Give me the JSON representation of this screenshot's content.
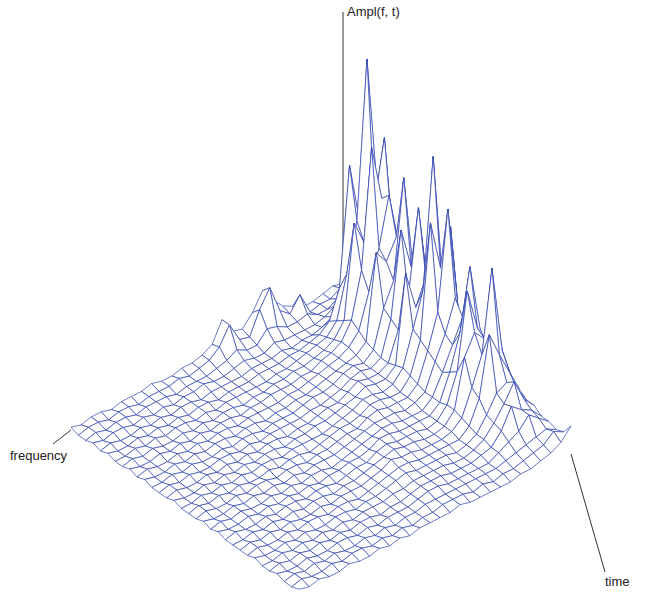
{
  "chart_data": {
    "type": "surface",
    "x_label": "time",
    "y_label": "frequency",
    "z_label": "Ampl(f, t)",
    "color": "#2f44b0",
    "tick_labels": false,
    "zlim": [
      0,
      100
    ],
    "values": [
      [
        3,
        4,
        3,
        2,
        2,
        4,
        6,
        10,
        15,
        9,
        5,
        6,
        12,
        5,
        3,
        2,
        2,
        1,
        1,
        2,
        1,
        1,
        1,
        0,
        1,
        1,
        0,
        1
      ],
      [
        4,
        5,
        3,
        3,
        2,
        10,
        5,
        8,
        18,
        12,
        4,
        5,
        12,
        6,
        3,
        2,
        1,
        2,
        1,
        1,
        1,
        0,
        1,
        1,
        0,
        1,
        1,
        0
      ],
      [
        6,
        8,
        5,
        3,
        3,
        5,
        4,
        4,
        6,
        7,
        3,
        3,
        5,
        3,
        2,
        1,
        1,
        1,
        0,
        1,
        1,
        1,
        0,
        1,
        1,
        0,
        1,
        0
      ],
      [
        10,
        12,
        9,
        6,
        4,
        3,
        3,
        3,
        3,
        4,
        2,
        2,
        3,
        2,
        1,
        1,
        2,
        1,
        1,
        0,
        1,
        0,
        1,
        0,
        1,
        1,
        0,
        1
      ],
      [
        14,
        20,
        15,
        10,
        6,
        4,
        3,
        3,
        2,
        3,
        2,
        2,
        2,
        1,
        1,
        1,
        1,
        0,
        1,
        1,
        0,
        1,
        0,
        1,
        0,
        0,
        1,
        0
      ],
      [
        20,
        35,
        38,
        60,
        18,
        8,
        5,
        4,
        3,
        3,
        2,
        2,
        2,
        1,
        1,
        1,
        0,
        1,
        1,
        0,
        1,
        0,
        1,
        0,
        1,
        0,
        0,
        1
      ],
      [
        30,
        50,
        98,
        42,
        25,
        10,
        6,
        5,
        4,
        3,
        2,
        2,
        1,
        1,
        1,
        1,
        1,
        0,
        1,
        0,
        1,
        1,
        0,
        1,
        0,
        1,
        0,
        0
      ],
      [
        25,
        70,
        48,
        36,
        45,
        12,
        7,
        5,
        4,
        3,
        3,
        2,
        2,
        1,
        1,
        0,
        1,
        1,
        0,
        1,
        0,
        1,
        0,
        0,
        1,
        0,
        1,
        0
      ],
      [
        22,
        40,
        52,
        72,
        30,
        14,
        8,
        6,
        5,
        3,
        3,
        2,
        2,
        2,
        1,
        1,
        0,
        1,
        1,
        0,
        1,
        0,
        1,
        0,
        1,
        0,
        0,
        1
      ],
      [
        18,
        35,
        55,
        38,
        24,
        12,
        8,
        6,
        5,
        4,
        3,
        2,
        2,
        1,
        1,
        1,
        1,
        0,
        1,
        1,
        0,
        1,
        0,
        1,
        0,
        0,
        1,
        0
      ],
      [
        15,
        30,
        42,
        35,
        40,
        10,
        7,
        6,
        5,
        4,
        3,
        2,
        2,
        1,
        1,
        0,
        1,
        1,
        0,
        1,
        1,
        0,
        1,
        0,
        1,
        0,
        0,
        1
      ],
      [
        14,
        28,
        65,
        30,
        22,
        9,
        6,
        7,
        6,
        4,
        3,
        3,
        2,
        1,
        1,
        1,
        0,
        1,
        1,
        0,
        1,
        0,
        0,
        1,
        0,
        1,
        0,
        0
      ],
      [
        12,
        45,
        35,
        50,
        20,
        8,
        6,
        7,
        6,
        4,
        3,
        2,
        2,
        1,
        1,
        1,
        1,
        0,
        1,
        0,
        1,
        1,
        0,
        0,
        1,
        0,
        1,
        0
      ],
      [
        10,
        25,
        58,
        28,
        18,
        8,
        6,
        6,
        7,
        5,
        3,
        3,
        2,
        1,
        1,
        0,
        1,
        1,
        0,
        1,
        0,
        1,
        0,
        1,
        0,
        0,
        1,
        0
      ],
      [
        12,
        22,
        35,
        26,
        40,
        9,
        6,
        6,
        7,
        5,
        4,
        3,
        2,
        2,
        1,
        1,
        0,
        1,
        1,
        0,
        1,
        0,
        1,
        0,
        1,
        0,
        0,
        1
      ],
      [
        15,
        30,
        80,
        34,
        22,
        10,
        6,
        5,
        6,
        6,
        4,
        3,
        2,
        1,
        1,
        1,
        1,
        0,
        1,
        1,
        0,
        1,
        0,
        1,
        0,
        1,
        0,
        0
      ],
      [
        14,
        55,
        42,
        60,
        20,
        9,
        5,
        5,
        6,
        6,
        4,
        3,
        3,
        2,
        1,
        0,
        1,
        1,
        0,
        1,
        0,
        0,
        1,
        0,
        1,
        0,
        1,
        0
      ],
      [
        12,
        28,
        65,
        30,
        18,
        8,
        5,
        5,
        5,
        6,
        5,
        3,
        3,
        2,
        1,
        1,
        0,
        1,
        1,
        0,
        1,
        1,
        0,
        1,
        0,
        0,
        1,
        0
      ],
      [
        10,
        22,
        35,
        24,
        16,
        7,
        5,
        4,
        5,
        5,
        5,
        4,
        3,
        2,
        1,
        1,
        1,
        0,
        1,
        0,
        1,
        0,
        1,
        0,
        1,
        0,
        0,
        1
      ],
      [
        12,
        20,
        30,
        22,
        14,
        7,
        4,
        4,
        4,
        5,
        5,
        4,
        3,
        2,
        1,
        0,
        1,
        1,
        0,
        1,
        0,
        1,
        0,
        0,
        1,
        0,
        1,
        0
      ],
      [
        14,
        26,
        50,
        28,
        16,
        7,
        4,
        4,
        4,
        4,
        5,
        5,
        3,
        2,
        2,
        1,
        1,
        0,
        1,
        0,
        1,
        0,
        1,
        0,
        1,
        0,
        0,
        1
      ],
      [
        12,
        22,
        30,
        45,
        18,
        8,
        4,
        3,
        4,
        4,
        4,
        5,
        4,
        2,
        2,
        1,
        0,
        1,
        1,
        0,
        1,
        1,
        0,
        1,
        0,
        0,
        1,
        0
      ],
      [
        10,
        40,
        28,
        32,
        25,
        8,
        4,
        3,
        3,
        4,
        4,
        5,
        4,
        3,
        2,
        1,
        1,
        0,
        1,
        1,
        0,
        1,
        0,
        1,
        0,
        1,
        0,
        0
      ],
      [
        12,
        24,
        55,
        26,
        16,
        7,
        4,
        3,
        3,
        3,
        4,
        4,
        5,
        3,
        2,
        1,
        1,
        1,
        0,
        1,
        0,
        0,
        1,
        0,
        1,
        0,
        1,
        0
      ],
      [
        10,
        18,
        26,
        35,
        14,
        6,
        3,
        3,
        3,
        3,
        3,
        4,
        4,
        3,
        2,
        1,
        0,
        1,
        1,
        0,
        1,
        1,
        0,
        1,
        0,
        0,
        1,
        0
      ],
      [
        8,
        14,
        18,
        16,
        10,
        5,
        3,
        2,
        3,
        3,
        3,
        3,
        4,
        3,
        2,
        1,
        1,
        0,
        1,
        1,
        0,
        0,
        1,
        0,
        1,
        0,
        0,
        1
      ],
      [
        8,
        12,
        20,
        14,
        9,
        5,
        3,
        2,
        2,
        3,
        3,
        3,
        3,
        2,
        2,
        1,
        1,
        1,
        0,
        1,
        0,
        1,
        0,
        1,
        0,
        1,
        0,
        0
      ],
      [
        6,
        10,
        12,
        15,
        8,
        4,
        3,
        2,
        2,
        2,
        3,
        3,
        3,
        2,
        1,
        1,
        0,
        1,
        1,
        0,
        1,
        0,
        1,
        0,
        1,
        0,
        1,
        0
      ],
      [
        6,
        9,
        12,
        8,
        6,
        4,
        2,
        2,
        2,
        2,
        2,
        3,
        3,
        2,
        1,
        1,
        1,
        0,
        1,
        0,
        1,
        1,
        0,
        0,
        1,
        0,
        0,
        1
      ],
      [
        5,
        7,
        6,
        5,
        4,
        3,
        2,
        2,
        2,
        2,
        2,
        2,
        2,
        2,
        1,
        1,
        0,
        1,
        0,
        1,
        0,
        0,
        1,
        0,
        1,
        0,
        1,
        0
      ],
      [
        6,
        8,
        5,
        4,
        3,
        2,
        2,
        1,
        2,
        1,
        2,
        2,
        2,
        1,
        1,
        0,
        1,
        0,
        1,
        0,
        1,
        1,
        0,
        1,
        0,
        0,
        1,
        0
      ],
      [
        10,
        6,
        4,
        3,
        2,
        2,
        1,
        1,
        1,
        1,
        1,
        2,
        1,
        1,
        1,
        1,
        0,
        1,
        0,
        1,
        0,
        0,
        1,
        0,
        0,
        1,
        0,
        1
      ]
    ]
  }
}
